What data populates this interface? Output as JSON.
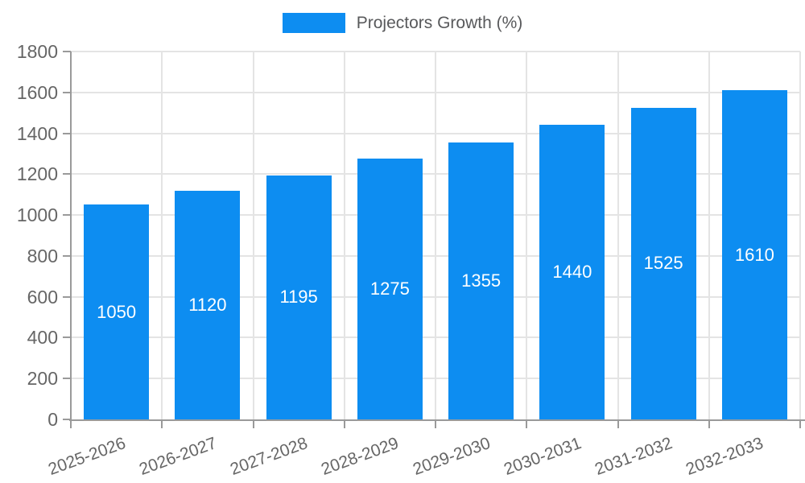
{
  "legend": {
    "label": "Projectors Growth (%)"
  },
  "chart_data": {
    "type": "bar",
    "title": "",
    "xlabel": "",
    "ylabel": "",
    "series": [
      {
        "name": "Projectors Growth (%)",
        "values": [
          1050,
          1120,
          1195,
          1275,
          1355,
          1440,
          1525,
          1610
        ]
      }
    ],
    "categories": [
      "2025-2026",
      "2026-2027",
      "2027-2028",
      "2028-2029",
      "2029-2030",
      "2030-2031",
      "2031-2032",
      "2032-2033"
    ],
    "value_labels": [
      "1050",
      "1120",
      "1195",
      "1275",
      "1355",
      "1440",
      "1525",
      "1610"
    ],
    "ylim": [
      0,
      1800
    ],
    "ytick_interval": 200,
    "yticks": [
      0,
      200,
      400,
      600,
      800,
      1000,
      1200,
      1400,
      1600,
      1800
    ],
    "grid": "on",
    "legend_position": "top-center",
    "value_label_position": "inside-center"
  },
  "colors": {
    "bar": "#0D8DF1",
    "gridline": "#E4E4E4",
    "axis_line": "#9A9A9A",
    "axis_text": "#666666",
    "legend_text": "#58595B",
    "value_label_text": "#FFFFFF",
    "background": "#FFFFFF"
  }
}
